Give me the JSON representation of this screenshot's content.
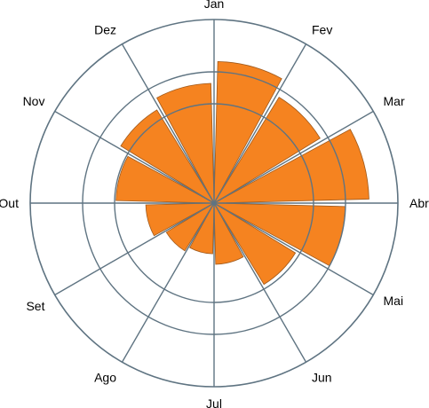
{
  "chart_data": {
    "type": "bar",
    "polar": true,
    "categories": [
      "Jan",
      "Fev",
      "Mar",
      "Abr",
      "Mai",
      "Jun",
      "Jul",
      "Ago",
      "Set",
      "Out",
      "Nov",
      "Dez"
    ],
    "values": [
      162,
      142,
      177,
      150,
      109,
      70,
      58,
      64,
      78,
      112,
      125,
      137
    ],
    "rlim": [
      0,
      210
    ],
    "grid": true,
    "bar_color": "#f58320",
    "bar_edge_color": "#a05a1c",
    "grid_color": "#5f7482"
  }
}
